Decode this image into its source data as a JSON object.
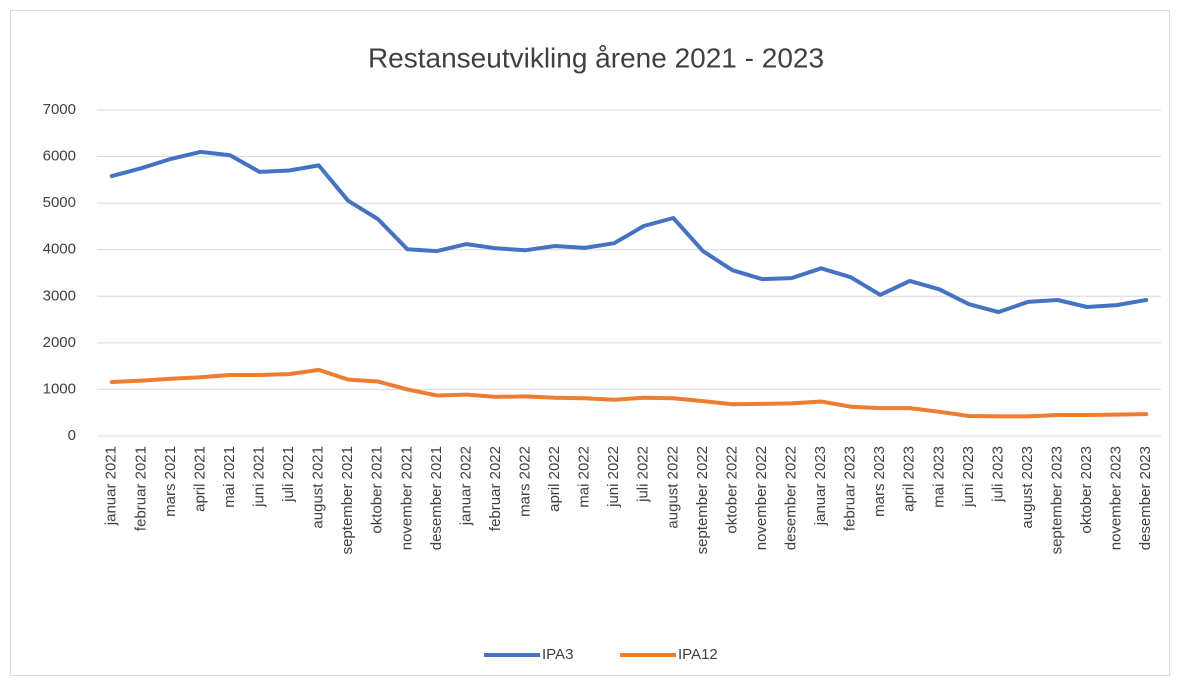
{
  "chart_data": {
    "type": "line",
    "title": "Restanseutvikling årene 2021 - 2023",
    "categories": [
      "januar 2021",
      "februar 2021",
      "mars 2021",
      "april 2021",
      "mai 2021",
      "juni 2021",
      "juli 2021",
      "august 2021",
      "september 2021",
      "oktober 2021",
      "november 2021",
      "desember 2021",
      "januar 2022",
      "februar 2022",
      "mars 2022",
      "april 2022",
      "mai 2022",
      "juni 2022",
      "juli 2022",
      "august 2022",
      "september 2022",
      "oktober 2022",
      "november 2022",
      "desember 2022",
      "januar 2023",
      "februar 2023",
      "mars 2023",
      "april 2023",
      "mai 2023",
      "juni 2023",
      "juli 2023",
      "august 2023",
      "september 2023",
      "oktober 2023",
      "november 2023",
      "desember 2023"
    ],
    "series": [
      {
        "name": "IPA3",
        "color": "#4472c4",
        "values": [
          5580,
          5750,
          5950,
          6100,
          6030,
          5670,
          5700,
          5810,
          5050,
          4660,
          4010,
          3970,
          4120,
          4030,
          3990,
          4080,
          4040,
          4140,
          4510,
          4680,
          3970,
          3560,
          3370,
          3390,
          3600,
          3410,
          3030,
          3330,
          3150,
          2830,
          2660,
          2880,
          2920,
          2770,
          2810,
          2920
        ]
      },
      {
        "name": "IPA12",
        "color": "#ed7d31",
        "values": [
          1160,
          1190,
          1230,
          1260,
          1310,
          1310,
          1330,
          1420,
          1210,
          1170,
          1000,
          870,
          890,
          840,
          850,
          820,
          810,
          780,
          820,
          810,
          750,
          680,
          690,
          700,
          740,
          630,
          600,
          600,
          520,
          430,
          420,
          420,
          450,
          450,
          460,
          470
        ]
      }
    ],
    "ylim": [
      0,
      7000
    ],
    "yticks": [
      0,
      1000,
      2000,
      3000,
      4000,
      5000,
      6000,
      7000
    ],
    "grid": true,
    "legend": "bottom"
  }
}
